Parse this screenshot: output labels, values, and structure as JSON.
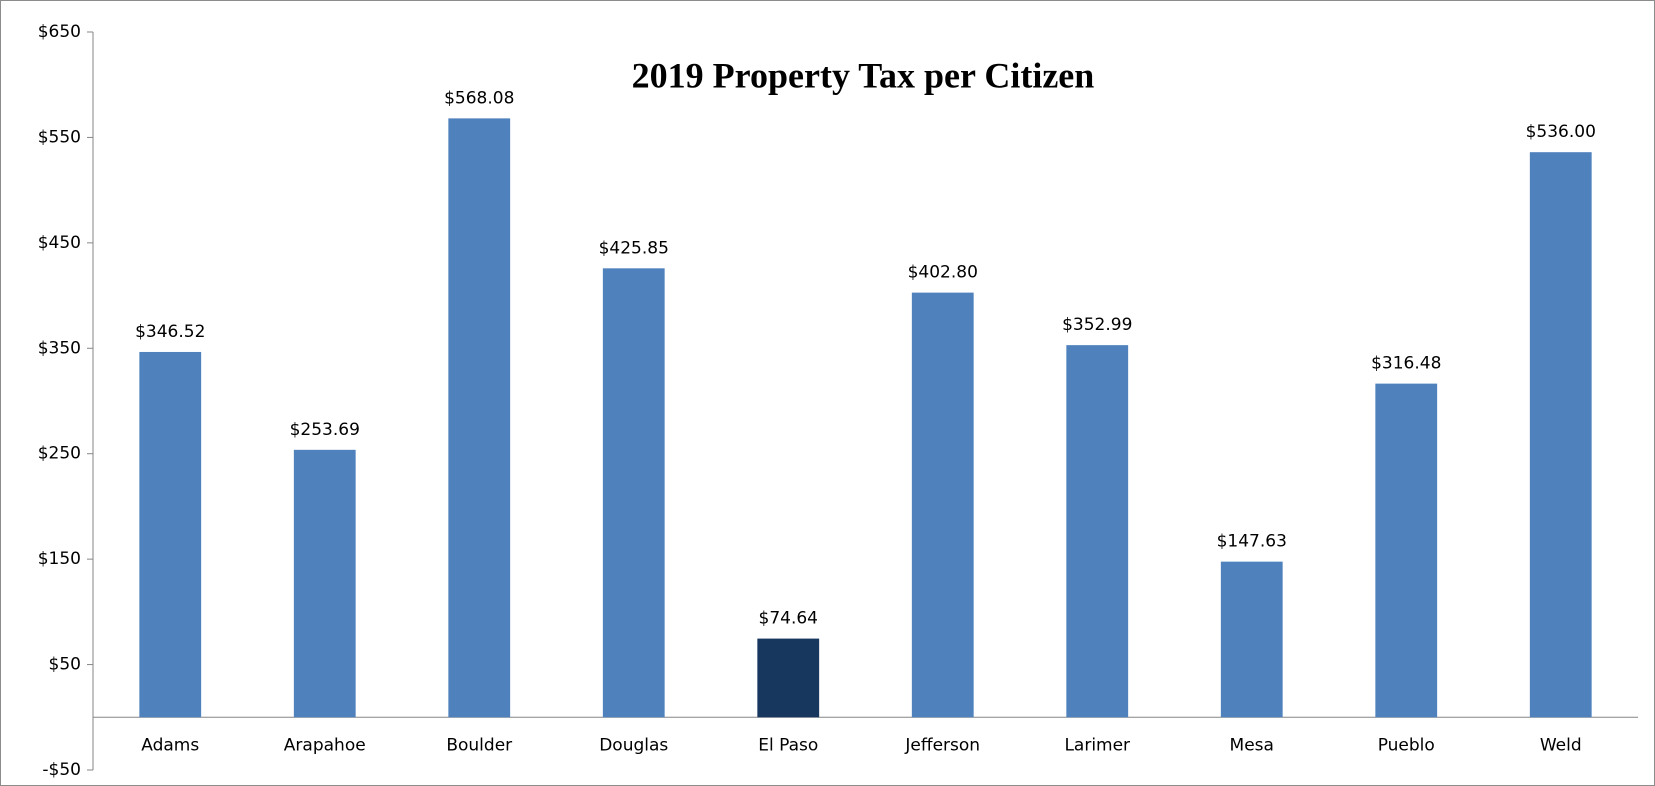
{
  "chart_data": {
    "type": "bar",
    "title": "2019 Property Tax per Citizen",
    "categories": [
      "Adams",
      "Arapahoe",
      "Boulder",
      "Douglas",
      "El Paso",
      "Jefferson",
      "Larimer",
      "Mesa",
      "Pueblo",
      "Weld"
    ],
    "values": [
      346.52,
      253.69,
      568.08,
      425.85,
      74.64,
      402.8,
      352.99,
      147.63,
      316.48,
      536.0
    ],
    "value_labels": [
      "$346.52",
      "$253.69",
      "$568.08",
      "$425.85",
      "$74.64",
      "$402.80",
      "$352.99",
      "$147.63",
      "$316.48",
      "$536.00"
    ],
    "colors": [
      "#4f81bd",
      "#4f81bd",
      "#4f81bd",
      "#4f81bd",
      "#17375e",
      "#4f81bd",
      "#4f81bd",
      "#4f81bd",
      "#4f81bd",
      "#4f81bd"
    ],
    "ylim": [
      -50,
      650
    ],
    "yticks": [
      {
        "value": -50,
        "label": "-$50"
      },
      {
        "value": 50,
        "label": "$50"
      },
      {
        "value": 150,
        "label": "$150"
      },
      {
        "value": 250,
        "label": "$250"
      },
      {
        "value": 350,
        "label": "$350"
      },
      {
        "value": 450,
        "label": "$450"
      },
      {
        "value": 550,
        "label": "$550"
      },
      {
        "value": 650,
        "label": "$650"
      }
    ],
    "grid": false
  }
}
